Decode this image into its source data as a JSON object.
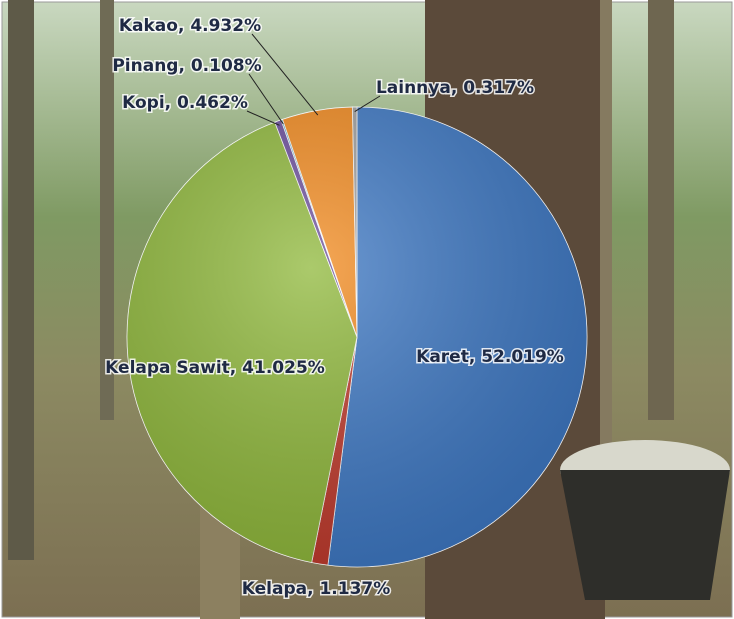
{
  "chart_data": {
    "type": "pie",
    "values": [
      52.019,
      1.137,
      41.025,
      0.462,
      0.108,
      4.932,
      0.317
    ],
    "value_labels": [
      "Karet, 52.019%",
      "Kelapa, 1.137%",
      "Kelapa Sawit, 41.025%",
      "Kopi, 0.462%",
      "Pinang, 0.108%",
      "Kakao, 4.932%",
      "Lainnya, 0.317%"
    ],
    "colors": [
      "#3d78c4",
      "#c0392b",
      "#8fb83a",
      "#6a4c9c",
      "#4aa3c9",
      "#f28a1e",
      "#a0a0a0"
    ]
  }
}
